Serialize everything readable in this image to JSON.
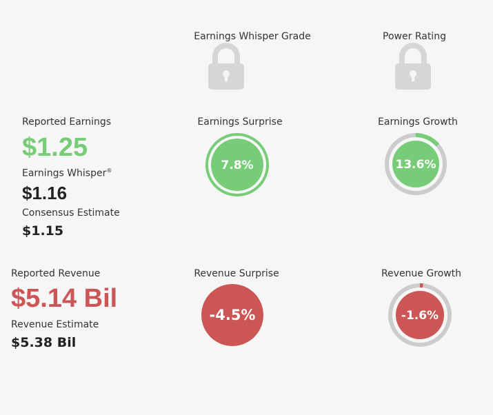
{
  "header": {
    "whisper_grade_label": "Earnings Whisper Grade",
    "power_rating_label": "Power Rating"
  },
  "earnings": {
    "reported_label": "Reported Earnings",
    "reported_value": "$1.25",
    "whisper_label": "Earnings Whisper",
    "whisper_mark": "®",
    "whisper_value": "$1.16",
    "consensus_label": "Consensus Estimate",
    "consensus_value": "$1.15",
    "surprise_label": "Earnings Surprise",
    "surprise_value": "7.8%",
    "surprise_fraction": 0.078,
    "growth_label": "Earnings Growth",
    "growth_value": "13.6%",
    "growth_fraction": 0.136
  },
  "revenue": {
    "reported_label": "Reported Revenue",
    "reported_value": "$5.14 Bil",
    "estimate_label": "Revenue Estimate",
    "estimate_value": "$5.38 Bil",
    "surprise_label": "Revenue Surprise",
    "surprise_value": "-4.5%",
    "surprise_fraction": -0.045,
    "growth_label": "Revenue Growth",
    "growth_value": "-1.6%",
    "growth_fraction": -0.016
  },
  "colors": {
    "positive": "#77cc77",
    "negative": "#cc5555",
    "ring_track": "#cccccc",
    "lock": "#d6d6d6"
  },
  "icons": {
    "whisper_grade": "lock-icon",
    "power_rating": "lock-icon"
  }
}
